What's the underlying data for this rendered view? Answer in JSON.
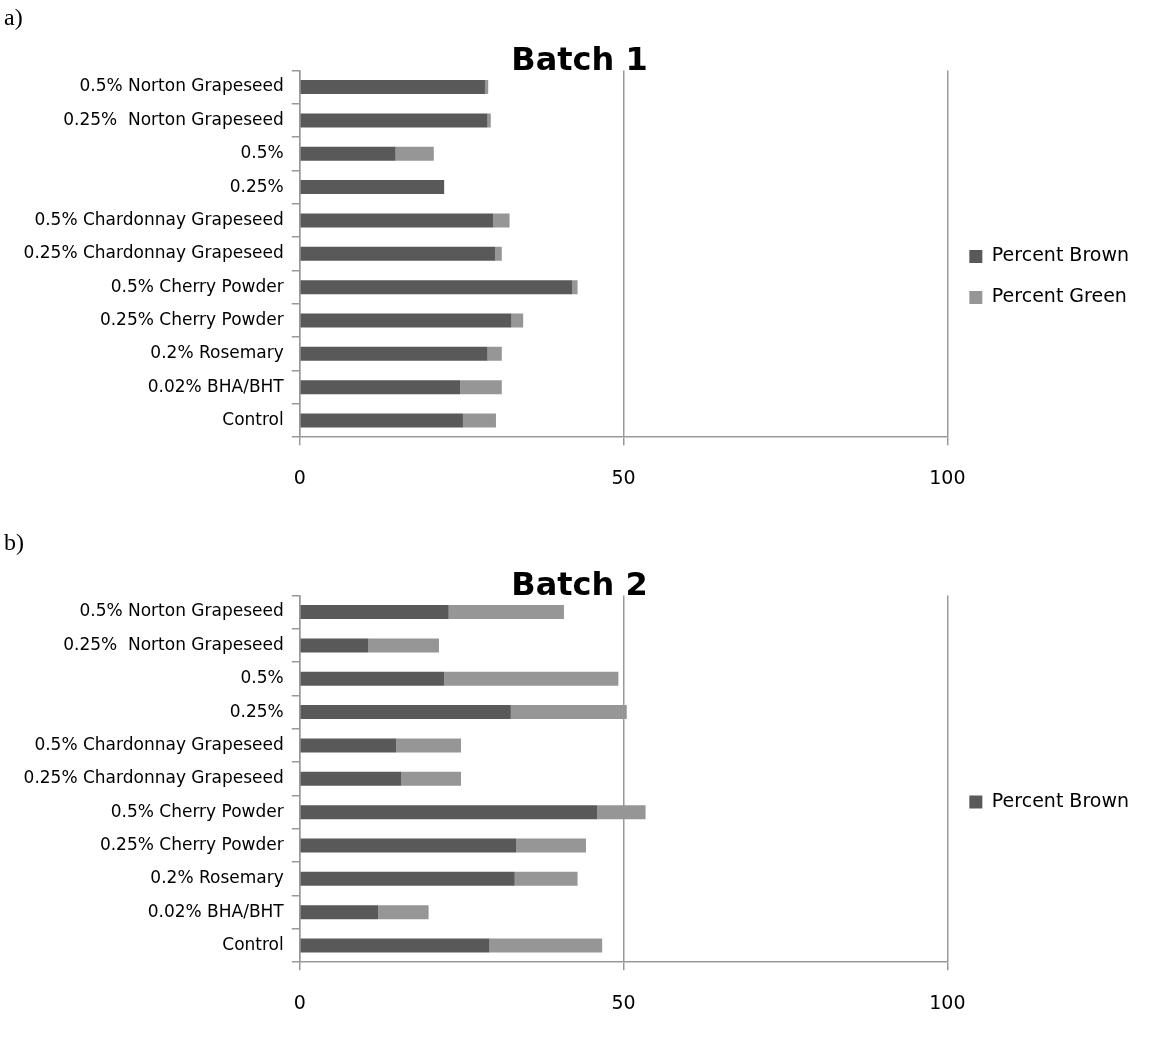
{
  "chart_data": [
    {
      "type": "bar",
      "orientation": "horizontal",
      "stacked": true,
      "title": "Batch 1",
      "annotations": [
        "a)"
      ],
      "categories": [
        "0.5% Norton Grapeseed",
        "0.25%  Norton Grapeseed",
        "0.5%",
        "0.25%",
        "0.5% Chardonnay Grapeseed",
        "0.25% Chardonnay Grapeseed",
        "0.5% Cherry Powder",
        "0.25% Cherry Powder",
        "0.2% Rosemary",
        "0.02% BHA/BHT",
        "Control"
      ],
      "series": [
        {
          "name": "Percent Brown",
          "color": "#595959",
          "values": [
            28.6,
            29.0,
            14.8,
            22.3,
            29.9,
            30.2,
            42.1,
            32.7,
            29.0,
            24.8,
            25.2
          ]
        },
        {
          "name": "Percent Green",
          "color": "#969696",
          "values": [
            0.5,
            0.5,
            5.9,
            0,
            2.5,
            1.0,
            0.8,
            1.8,
            2.2,
            6.4,
            5.1
          ]
        }
      ],
      "xlim": [
        0,
        100
      ],
      "xticks": [
        0,
        50,
        100
      ],
      "grid": "x",
      "legend": "right"
    },
    {
      "type": "bar",
      "orientation": "horizontal",
      "stacked": true,
      "title": "Batch 2",
      "annotations": [
        "b)"
      ],
      "categories": [
        "0.5% Norton Grapeseed",
        "0.25%  Norton Grapeseed",
        "0.5%",
        "0.25%",
        "0.5% Chardonnay Grapeseed",
        "0.25% Chardonnay Grapeseed",
        "0.5% Cherry Powder",
        "0.25% Cherry Powder",
        "0.2% Rosemary",
        "0.02% BHA/BHT",
        "Control"
      ],
      "series": [
        {
          "name": "Percent Brown",
          "color": "#595959",
          "values": [
            23.0,
            10.6,
            22.3,
            32.6,
            14.9,
            15.7,
            45.9,
            33.4,
            33.2,
            12.1,
            29.3
          ]
        },
        {
          "color": "#969696",
          "values": [
            17.8,
            10.9,
            26.9,
            17.9,
            10.0,
            9.2,
            7.5,
            10.8,
            9.7,
            7.8,
            17.4
          ]
        }
      ],
      "xlim": [
        0,
        100
      ],
      "xticks": [
        0,
        50,
        100
      ],
      "grid": "x",
      "legend": "right"
    }
  ]
}
